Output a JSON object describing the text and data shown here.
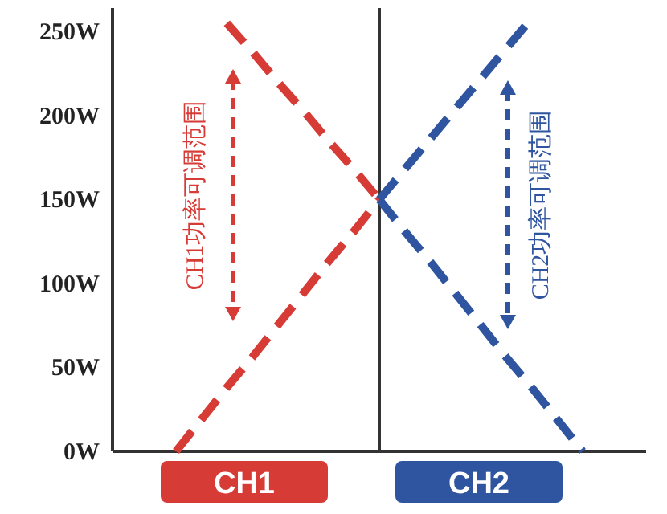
{
  "chart_data": {
    "type": "line",
    "categories": [
      null,
      null,
      null,
      null,
      null,
      null,
      null,
      null,
      null,
      null,
      null,
      null,
      null,
      null,
      null,
      null,
      null,
      null,
      null,
      null,
      null
    ],
    "ylim": [
      0,
      264
    ],
    "yticks": [
      {
        "value": 0,
        "label": "0W"
      },
      {
        "value": 50,
        "label": "50W"
      },
      {
        "value": 100,
        "label": "100W"
      },
      {
        "value": 150,
        "label": "150W"
      },
      {
        "value": 200,
        "label": "200W"
      },
      {
        "value": 250,
        "label": "250W"
      }
    ],
    "grid": false,
    "line_style": "dashed",
    "marker": "none",
    "series": [
      {
        "color": "#d63b36",
        "values": [
          null,
          null,
          0,
          19,
          38,
          56,
          75,
          94,
          113,
          131,
          150,
          null,
          null,
          null,
          null,
          null,
          null,
          null,
          null,
          null,
          null
        ]
      },
      {
        "color": "#d63b36",
        "values": [
          null,
          null,
          null,
          null,
          255,
          238,
          220,
          203,
          185,
          168,
          150,
          null,
          null,
          null,
          null,
          null,
          null,
          null,
          null,
          null,
          null
        ]
      },
      {
        "color": "#2f55a0",
        "values": [
          null,
          null,
          null,
          null,
          null,
          null,
          null,
          null,
          null,
          null,
          150,
          168,
          186,
          204,
          222,
          240,
          258,
          null,
          null,
          null,
          null
        ]
      },
      {
        "color": "#2f55a0",
        "values": [
          null,
          null,
          null,
          null,
          null,
          null,
          null,
          null,
          null,
          null,
          150,
          131,
          113,
          94,
          75,
          56,
          38,
          19,
          0,
          null,
          null
        ]
      }
    ],
    "annotations": [
      "CH1功率可调范围",
      "CH2功率可调范围",
      "CH1",
      "CH2"
    ]
  }
}
